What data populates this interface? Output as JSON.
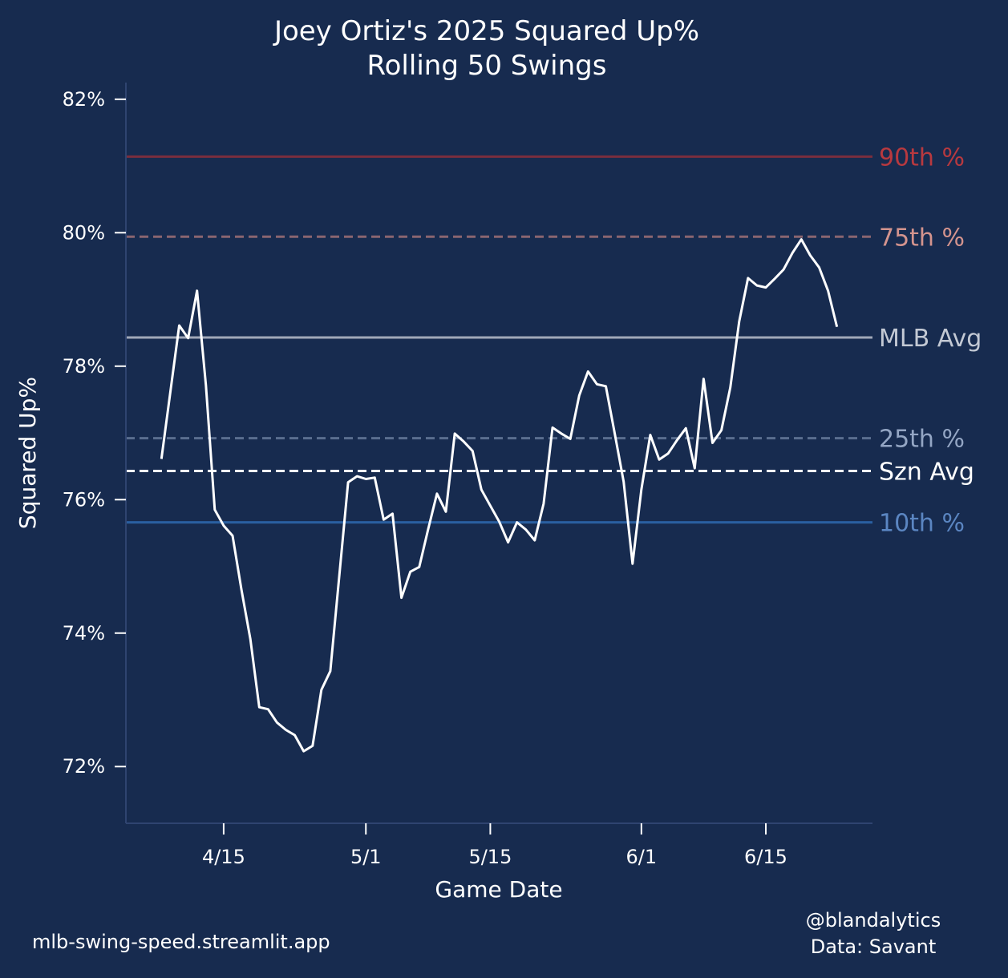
{
  "chart_data": {
    "type": "line",
    "title": "Joey Ortiz's 2025 Squared Up%",
    "subtitle": "Rolling 50 Swings",
    "xlabel": "Game Date",
    "ylabel": "Squared Up%",
    "xlim": [
      "2025-04-04",
      "2025-06-27"
    ],
    "ylim": [
      71.15,
      82.25
    ],
    "yticks": [
      72,
      74,
      76,
      78,
      80,
      82
    ],
    "ytick_labels": [
      "72%",
      "74%",
      "76%",
      "78%",
      "80%",
      "82%"
    ],
    "xticks": [
      "2025-04-15",
      "2025-05-01",
      "2025-05-15",
      "2025-06-01",
      "2025-06-15"
    ],
    "xtick_labels": [
      "4/15",
      "5/1",
      "5/15",
      "6/1",
      "6/15"
    ],
    "grid": false,
    "background": "#172b4f",
    "line_color": "#ffffff",
    "reference_lines": [
      {
        "label": "90th %",
        "value": 81.14,
        "style": "solid",
        "line_color": "#7a2e3e",
        "label_color": "#b8393f"
      },
      {
        "label": "75th %",
        "value": 79.94,
        "style": "dashed",
        "line_color": "#8a6570",
        "label_color": "#d4948e"
      },
      {
        "label": "MLB Avg",
        "value": 78.43,
        "style": "solid",
        "line_color": "#a0a8b8",
        "label_color": "#c3c9d4"
      },
      {
        "label": "25th %",
        "value": 76.92,
        "style": "dashed",
        "line_color": "#5a6e8f",
        "label_color": "#94a6c4"
      },
      {
        "label": "Szn Avg",
        "value": 76.43,
        "style": "dashed",
        "line_color": "#ffffff",
        "label_color": "#ffffff"
      },
      {
        "label": "10th %",
        "value": 75.66,
        "style": "solid",
        "line_color": "#2a5fa0",
        "label_color": "#5b86c2"
      }
    ],
    "x": [
      "2025-04-08",
      "2025-04-10",
      "2025-04-11",
      "2025-04-12",
      "2025-04-13",
      "2025-04-14",
      "2025-04-15",
      "2025-04-16",
      "2025-04-17",
      "2025-04-18",
      "2025-04-19",
      "2025-04-20",
      "2025-04-21",
      "2025-04-22",
      "2025-04-23",
      "2025-04-24",
      "2025-04-25",
      "2025-04-26",
      "2025-04-27",
      "2025-04-29",
      "2025-04-30",
      "2025-05-01",
      "2025-05-02",
      "2025-05-03",
      "2025-05-04",
      "2025-05-05",
      "2025-05-06",
      "2025-05-07",
      "2025-05-08",
      "2025-05-09",
      "2025-05-10",
      "2025-05-11",
      "2025-05-12",
      "2025-05-13",
      "2025-05-14",
      "2025-05-15",
      "2025-05-16",
      "2025-05-17",
      "2025-05-18",
      "2025-05-19",
      "2025-05-20",
      "2025-05-21",
      "2025-05-22",
      "2025-05-23",
      "2025-05-24",
      "2025-05-25",
      "2025-05-26",
      "2025-05-27",
      "2025-05-28",
      "2025-05-29",
      "2025-05-30",
      "2025-05-31",
      "2025-06-01",
      "2025-06-02",
      "2025-06-03",
      "2025-06-04",
      "2025-06-05",
      "2025-06-06",
      "2025-06-07",
      "2025-06-08",
      "2025-06-09",
      "2025-06-10",
      "2025-06-11",
      "2025-06-12",
      "2025-06-13",
      "2025-06-14",
      "2025-06-15",
      "2025-06-16",
      "2025-06-17",
      "2025-06-18",
      "2025-06-19",
      "2025-06-20",
      "2025-06-21",
      "2025-06-22",
      "2025-06-23"
    ],
    "values": [
      76.61,
      78.61,
      78.42,
      79.13,
      77.71,
      75.85,
      75.61,
      75.46,
      74.65,
      73.91,
      72.89,
      72.86,
      72.66,
      72.55,
      72.47,
      72.23,
      72.31,
      73.15,
      73.43,
      76.26,
      76.35,
      76.31,
      76.33,
      75.7,
      75.79,
      74.53,
      74.92,
      74.99,
      75.55,
      76.09,
      75.82,
      76.99,
      76.87,
      76.73,
      76.15,
      75.91,
      75.67,
      75.36,
      75.66,
      75.55,
      75.39,
      75.94,
      77.08,
      76.99,
      76.91,
      77.56,
      77.92,
      77.73,
      77.7,
      76.99,
      76.27,
      75.04,
      76.15,
      76.97,
      76.6,
      76.69,
      76.89,
      77.07,
      76.47,
      77.81,
      76.85,
      77.04,
      77.68,
      78.67,
      79.32,
      79.21,
      79.18,
      79.31,
      79.45,
      79.7,
      79.9,
      79.66,
      79.48,
      79.13,
      78.59
    ]
  },
  "footer": {
    "site": "mlb-swing-speed.streamlit.app",
    "credit": "@blandalytics",
    "source": "Data: Savant"
  }
}
